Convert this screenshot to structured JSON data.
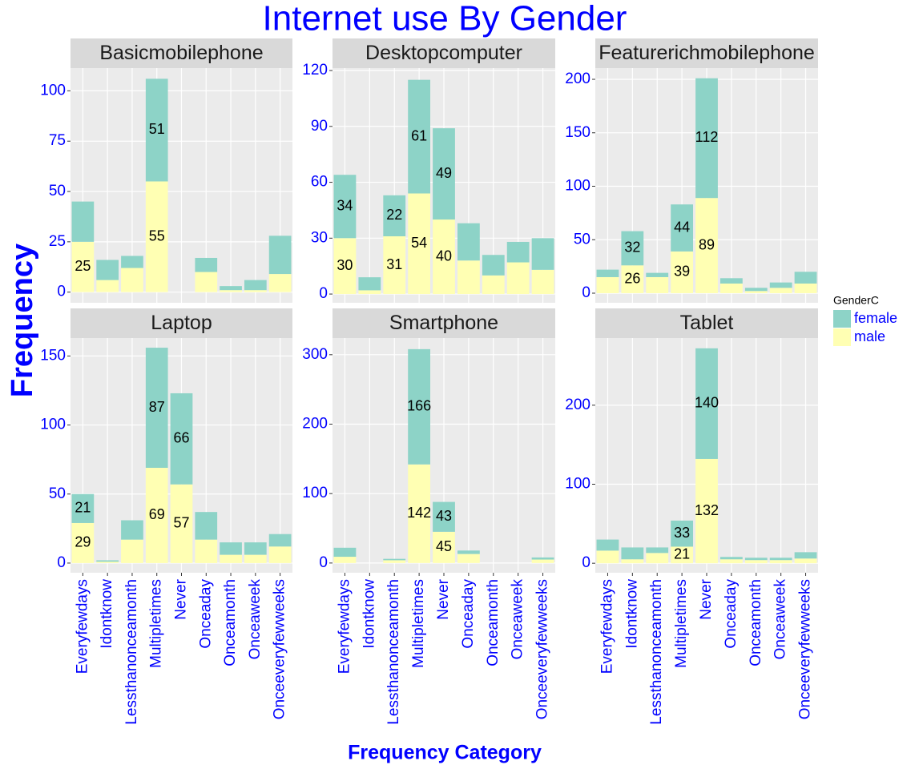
{
  "title": "Internet use  By Gender",
  "xlabel": "Frequency Category",
  "ylabel": "Frequency",
  "legend_title": "GenderC",
  "chart_data": [
    {
      "type": "bar",
      "title": "Basicmobilephone",
      "categories": [
        "Everyfewdays",
        "Idontknow",
        "Lessthanonceamonth",
        "Multipletimes",
        "Never",
        "Onceaday",
        "Onceamonth",
        "Onceaweek",
        "Onceeveryfewweeks"
      ],
      "series": [
        {
          "name": "male",
          "color": "#FFFFB3",
          "values": [
            25,
            6,
            12,
            55,
            0,
            10,
            1,
            1,
            9
          ],
          "value_labels": [
            "25",
            null,
            null,
            "55",
            null,
            null,
            null,
            null,
            null
          ]
        },
        {
          "name": "female",
          "color": "#8DD3C7",
          "values": [
            20,
            10,
            6,
            51,
            0,
            7,
            2,
            5,
            19
          ],
          "value_labels": [
            null,
            null,
            null,
            "51",
            null,
            null,
            null,
            null,
            null
          ]
        }
      ],
      "ylim": [
        -5.3,
        111.3
      ],
      "yticks": [
        0,
        25,
        50,
        75,
        100
      ],
      "grid": true
    },
    {
      "type": "bar",
      "title": "Desktopcomputer",
      "categories": [
        "Everyfewdays",
        "Idontknow",
        "Lessthanonceamonth",
        "Multipletimes",
        "Never",
        "Onceaday",
        "Onceamonth",
        "Onceaweek",
        "Onceeveryfewweeks"
      ],
      "series": [
        {
          "name": "male",
          "color": "#FFFFB3",
          "values": [
            30,
            2,
            31,
            54,
            40,
            18,
            10,
            17,
            13
          ],
          "value_labels": [
            "30",
            null,
            "31",
            "54",
            "40",
            null,
            null,
            null,
            null
          ]
        },
        {
          "name": "female",
          "color": "#8DD3C7",
          "values": [
            34,
            7,
            22,
            61,
            49,
            20,
            11,
            11,
            17
          ],
          "value_labels": [
            "34",
            null,
            "22",
            "61",
            "49",
            null,
            null,
            null,
            null
          ]
        }
      ],
      "ylim": [
        -4.7,
        121.3
      ],
      "yticks": [
        0,
        30,
        60,
        90,
        120
      ],
      "grid": true
    },
    {
      "type": "bar",
      "title": "Featurerichmobilephone",
      "categories": [
        "Everyfewdays",
        "Idontknow",
        "Lessthanonceamonth",
        "Multipletimes",
        "Never",
        "Onceaday",
        "Onceamonth",
        "Onceaweek",
        "Onceeveryfewweeks"
      ],
      "series": [
        {
          "name": "male",
          "color": "#FFFFB3",
          "values": [
            15,
            26,
            15,
            39,
            89,
            9,
            2,
            5,
            9
          ],
          "value_labels": [
            null,
            "26",
            null,
            "39",
            "89",
            null,
            null,
            null,
            null
          ]
        },
        {
          "name": "female",
          "color": "#8DD3C7",
          "values": [
            7,
            32,
            4,
            44,
            112,
            5,
            3,
            5,
            11
          ],
          "value_labels": [
            null,
            "32",
            null,
            "44",
            "112",
            null,
            null,
            null,
            null
          ]
        }
      ],
      "ylim": [
        -9,
        210.5
      ],
      "yticks": [
        0,
        50,
        100,
        150,
        200
      ],
      "grid": true
    },
    {
      "type": "bar",
      "title": "Laptop",
      "categories": [
        "Everyfewdays",
        "Idontknow",
        "Lessthanonceamonth",
        "Multipletimes",
        "Never",
        "Onceaday",
        "Onceamonth",
        "Onceaweek",
        "Onceeveryfewweeks"
      ],
      "series": [
        {
          "name": "male",
          "color": "#FFFFB3",
          "values": [
            29,
            1,
            17,
            69,
            57,
            17,
            6,
            6,
            12
          ],
          "value_labels": [
            "29",
            null,
            null,
            "69",
            "57",
            null,
            null,
            null,
            null
          ]
        },
        {
          "name": "female",
          "color": "#8DD3C7",
          "values": [
            21,
            1,
            14,
            87,
            66,
            20,
            9,
            9,
            9
          ],
          "value_labels": [
            "21",
            null,
            null,
            "87",
            "66",
            null,
            null,
            null,
            null
          ]
        }
      ],
      "ylim": [
        -7,
        163
      ],
      "yticks": [
        0,
        50,
        100,
        150
      ],
      "grid": true
    },
    {
      "type": "bar",
      "title": "Smartphone",
      "categories": [
        "Everyfewdays",
        "Idontknow",
        "Lessthanonceamonth",
        "Multipletimes",
        "Never",
        "Onceaday",
        "Onceamonth",
        "Onceaweek",
        "Onceeveryfewweeks"
      ],
      "series": [
        {
          "name": "male",
          "color": "#FFFFB3",
          "values": [
            9,
            0,
            4,
            142,
            45,
            13,
            0,
            0,
            5
          ],
          "value_labels": [
            null,
            null,
            null,
            "142",
            "45",
            null,
            null,
            null,
            null
          ]
        },
        {
          "name": "female",
          "color": "#8DD3C7",
          "values": [
            13,
            0,
            2,
            166,
            43,
            5,
            0,
            0,
            3
          ],
          "value_labels": [
            null,
            null,
            null,
            "166",
            "43",
            null,
            null,
            null,
            null
          ]
        }
      ],
      "ylim": [
        -14,
        324
      ],
      "yticks": [
        0,
        100,
        200,
        300
      ],
      "grid": true
    },
    {
      "type": "bar",
      "title": "Tablet",
      "categories": [
        "Everyfewdays",
        "Idontknow",
        "Lessthanonceamonth",
        "Multipletimes",
        "Never",
        "Onceaday",
        "Onceamonth",
        "Onceaweek",
        "Onceeveryfewweeks"
      ],
      "series": [
        {
          "name": "male",
          "color": "#FFFFB3",
          "values": [
            16,
            5,
            13,
            21,
            132,
            5,
            4,
            4,
            6
          ],
          "value_labels": [
            null,
            null,
            null,
            "21",
            "132",
            null,
            null,
            null,
            null
          ]
        },
        {
          "name": "female",
          "color": "#8DD3C7",
          "values": [
            14,
            15,
            7,
            33,
            140,
            3,
            3,
            3,
            8
          ],
          "value_labels": [
            null,
            null,
            null,
            "33",
            "140",
            null,
            null,
            null,
            null
          ]
        }
      ],
      "ylim": [
        -12,
        285
      ],
      "yticks": [
        0,
        100,
        200
      ],
      "grid": true
    }
  ]
}
